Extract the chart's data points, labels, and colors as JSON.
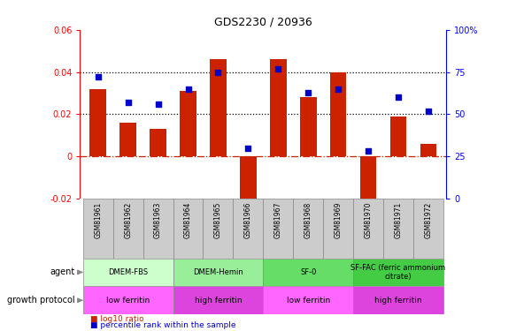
{
  "title": "GDS2230 / 20936",
  "samples": [
    "GSM81961",
    "GSM81962",
    "GSM81963",
    "GSM81964",
    "GSM81965",
    "GSM81966",
    "GSM81967",
    "GSM81968",
    "GSM81969",
    "GSM81970",
    "GSM81971",
    "GSM81972"
  ],
  "log10_ratio": [
    0.032,
    0.016,
    0.013,
    0.031,
    0.046,
    -0.024,
    0.046,
    0.028,
    0.04,
    -0.022,
    0.019,
    0.006
  ],
  "percentile_rank": [
    72,
    57,
    56,
    65,
    75,
    30,
    77,
    63,
    65,
    28,
    60,
    52
  ],
  "ylim_left": [
    -0.02,
    0.06
  ],
  "ylim_right": [
    0,
    100
  ],
  "yticks_left": [
    -0.02,
    0,
    0.02,
    0.04,
    0.06
  ],
  "yticks_right": [
    0,
    25,
    50,
    75,
    100
  ],
  "bar_color": "#cc2200",
  "dot_color": "#0000cc",
  "agent_groups": [
    {
      "label": "DMEM-FBS",
      "start": 0,
      "end": 3,
      "color": "#ccffcc"
    },
    {
      "label": "DMEM-Hemin",
      "start": 3,
      "end": 6,
      "color": "#99ee99"
    },
    {
      "label": "SF-0",
      "start": 6,
      "end": 9,
      "color": "#66dd66"
    },
    {
      "label": "SF-FAC (ferric ammonium\ncitrate)",
      "start": 9,
      "end": 12,
      "color": "#44cc44"
    }
  ],
  "protocol_groups": [
    {
      "label": "low ferritin",
      "start": 0,
      "end": 3,
      "color": "#ff66ff"
    },
    {
      "label": "high ferritin",
      "start": 3,
      "end": 6,
      "color": "#dd44dd"
    },
    {
      "label": "low ferritin",
      "start": 6,
      "end": 9,
      "color": "#ff66ff"
    },
    {
      "label": "high ferritin",
      "start": 9,
      "end": 12,
      "color": "#dd44dd"
    }
  ],
  "legend_red_label": "log10 ratio",
  "legend_blue_label": "percentile rank within the sample",
  "legend_red_color": "#cc2200",
  "legend_blue_color": "#0000cc",
  "sample_bg_color": "#cccccc",
  "sample_text_color": "#000000"
}
